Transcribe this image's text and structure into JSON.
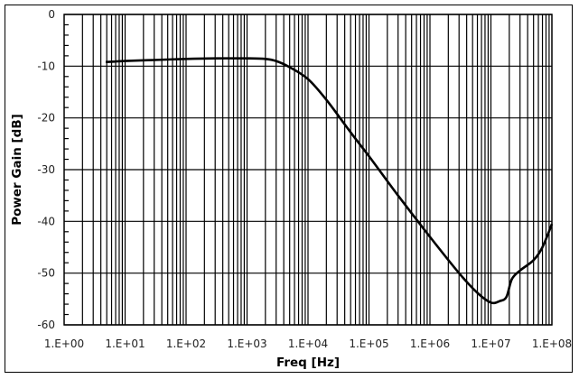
{
  "chart_data": {
    "type": "line",
    "title": "",
    "xlabel": "Freq [Hz]",
    "ylabel": "Power Gain [dB]",
    "xscale": "log",
    "xlim": [
      1,
      100000000
    ],
    "ylim": [
      -60,
      0
    ],
    "grid": true,
    "legend": null,
    "xticks": [
      "1.E+00",
      "1.E+01",
      "1.E+02",
      "1.E+03",
      "1.E+04",
      "1.E+05",
      "1.E+06",
      "1.E+07",
      "1.E+08"
    ],
    "yticks": [
      "0",
      "-10",
      "-20",
      "-30",
      "-40",
      "-50",
      "-60"
    ],
    "series": [
      {
        "name": "Power Gain",
        "color": "#000000",
        "x": [
          4.8,
          10,
          30,
          100,
          300,
          1000,
          2000,
          3000,
          5000,
          10000,
          20000,
          50000,
          100000,
          300000,
          1000000,
          3000000,
          6000000,
          10000000,
          14000000,
          18000000,
          22000000,
          30000000,
          50000000,
          70000000,
          100000000
        ],
        "y": [
          -9.2,
          -9.0,
          -8.8,
          -8.6,
          -8.5,
          -8.5,
          -8.6,
          -9.0,
          -10.2,
          -12.5,
          -16.5,
          -22.8,
          -27.4,
          -35.0,
          -43.0,
          -50.0,
          -53.8,
          -55.7,
          -55.4,
          -54.6,
          -51.2,
          -49.5,
          -47.5,
          -45.0,
          -40.5
        ]
      }
    ]
  }
}
